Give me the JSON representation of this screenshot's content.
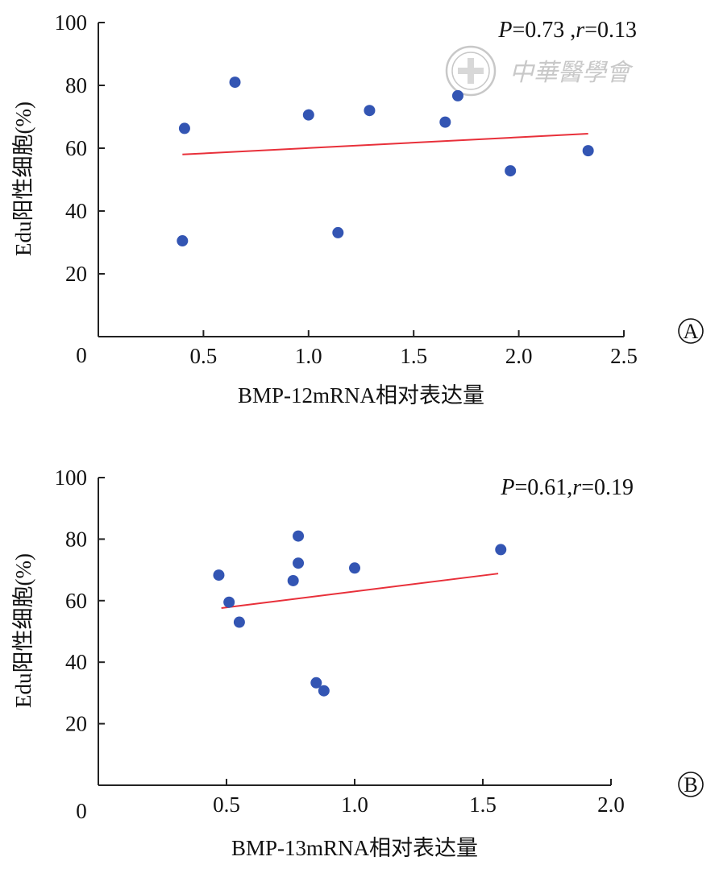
{
  "watermark": {
    "text": "中華醫學會",
    "icon": "medical-seal-icon",
    "color": "#c8c8c8"
  },
  "colors": {
    "point": "#3355b3",
    "fit_line": "#e8303a",
    "axis": "#222222"
  },
  "chart_data": [
    {
      "panel": "A",
      "type": "scatter",
      "title": "",
      "xlabel": "BMP-12mRNA相对表达量",
      "ylabel": "Edu阳性细胞(%)",
      "xlim": [
        0,
        2.5
      ],
      "ylim": [
        0,
        100
      ],
      "x_ticks": [
        0.5,
        1.0,
        1.5,
        2.0,
        2.5
      ],
      "x_tick_labels": [
        "0.5",
        "1.0",
        "1.5",
        "2.0",
        "2.5"
      ],
      "y_ticks": [
        20,
        40,
        60,
        80,
        100
      ],
      "y_tick_labels": [
        "20",
        "40",
        "60",
        "80",
        "100"
      ],
      "origin_label": "0",
      "stat_p_label": "P",
      "stat_p_value": "=0.73 ,",
      "stat_r_label": "r",
      "stat_r_value": "=0.13",
      "points": [
        {
          "x": 0.4,
          "y": 30.5
        },
        {
          "x": 0.41,
          "y": 66.3
        },
        {
          "x": 0.65,
          "y": 81.0
        },
        {
          "x": 1.0,
          "y": 70.6
        },
        {
          "x": 1.14,
          "y": 33.1
        },
        {
          "x": 1.29,
          "y": 72.0
        },
        {
          "x": 1.65,
          "y": 68.3
        },
        {
          "x": 1.71,
          "y": 76.7
        },
        {
          "x": 1.96,
          "y": 52.8
        },
        {
          "x": 2.33,
          "y": 59.2
        }
      ],
      "fit_line": {
        "x0": 0.4,
        "y0": 58.0,
        "x1": 2.33,
        "y1": 64.6
      }
    },
    {
      "panel": "B",
      "type": "scatter",
      "title": "",
      "xlabel": "BMP-13mRNA相对表达量",
      "ylabel": "Edu阳性细胞(%)",
      "xlim": [
        0,
        2.0
      ],
      "ylim": [
        0,
        100
      ],
      "x_ticks": [
        0.5,
        1.0,
        1.5,
        2.0
      ],
      "x_tick_labels": [
        "0.5",
        "1.0",
        "1.5",
        "2.0"
      ],
      "y_ticks": [
        20,
        40,
        60,
        80,
        100
      ],
      "y_tick_labels": [
        "20",
        "40",
        "60",
        "80",
        "100"
      ],
      "origin_label": "0",
      "stat_p_label": "P",
      "stat_p_value": "=0.61,",
      "stat_r_label": "r",
      "stat_r_value": "=0.19",
      "points": [
        {
          "x": 0.47,
          "y": 68.3
        },
        {
          "x": 0.51,
          "y": 59.5
        },
        {
          "x": 0.55,
          "y": 53.0
        },
        {
          "x": 0.76,
          "y": 66.5
        },
        {
          "x": 0.78,
          "y": 72.2
        },
        {
          "x": 0.78,
          "y": 81.0
        },
        {
          "x": 0.85,
          "y": 33.3
        },
        {
          "x": 0.88,
          "y": 30.7
        },
        {
          "x": 1.0,
          "y": 70.6
        },
        {
          "x": 1.57,
          "y": 76.6
        }
      ],
      "fit_line": {
        "x0": 0.48,
        "y0": 57.6,
        "x1": 1.56,
        "y1": 68.8
      }
    }
  ]
}
